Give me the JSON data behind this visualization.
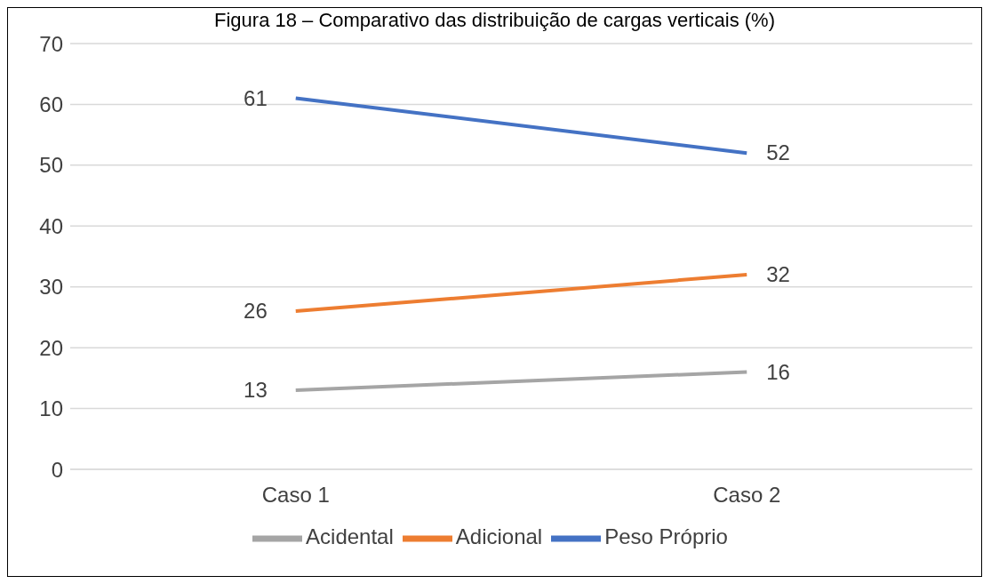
{
  "chart_data": {
    "type": "line",
    "title": "Figura 18 – Comparativo das distribuição de cargas verticais (%)",
    "categories": [
      "Caso 1",
      "Caso 2"
    ],
    "series": [
      {
        "name": "Peso Próprio",
        "color": "#4472c4",
        "values": [
          61,
          52
        ]
      },
      {
        "name": "Adicional",
        "color": "#ed7d31",
        "values": [
          26,
          32
        ]
      },
      {
        "name": "Acidental",
        "color": "#a5a5a5",
        "values": [
          13,
          16
        ]
      }
    ],
    "ylim": [
      0,
      70
    ],
    "yticks": [
      0,
      10,
      20,
      30,
      40,
      50,
      60,
      70
    ],
    "grid": "y",
    "legend": "bottom",
    "data_labels": true,
    "marker": "none",
    "line_style": "solid"
  }
}
